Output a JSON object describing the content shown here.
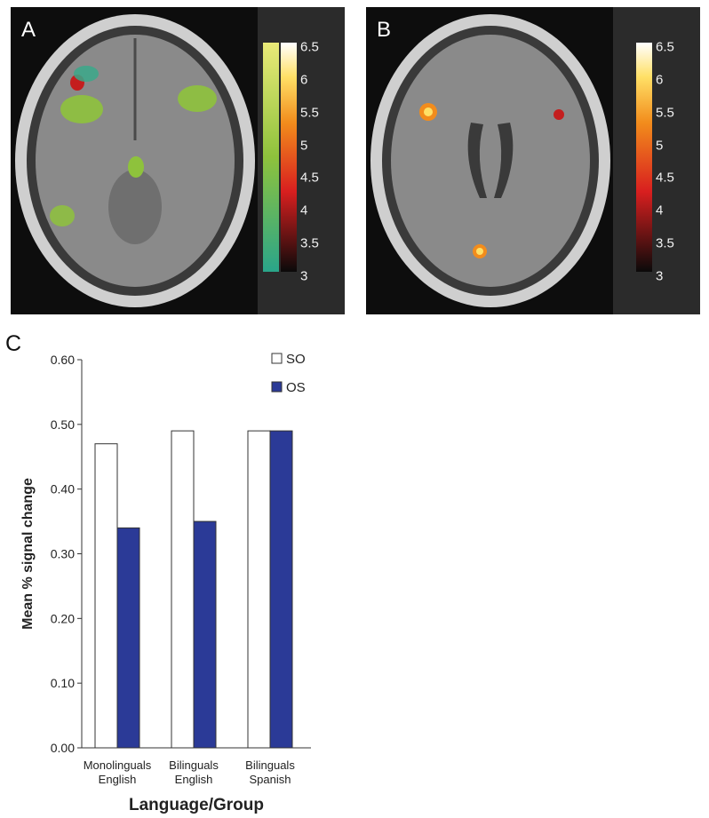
{
  "panels": {
    "a": {
      "letter": "A",
      "colorbar_ticks": [
        "6.5",
        "6",
        "5.5",
        "5",
        "4.5",
        "4",
        "3.5",
        "3"
      ],
      "colorbar_colors": [
        "#3aa88a",
        "#8ec23c",
        "#e2e25a",
        "#0a0a0a",
        "#d81f1f",
        "#f28c1c",
        "#ffe066",
        "#ffffff"
      ]
    },
    "b": {
      "letter": "B",
      "colorbar_ticks": [
        "6.5",
        "6",
        "5.5",
        "5",
        "4.5",
        "4",
        "3.5",
        "3"
      ],
      "colorbar_colors": [
        "#0a0a0a",
        "#d81f1f",
        "#f28c1c",
        "#ffe066",
        "#ffffff"
      ]
    },
    "c": {
      "letter": "C"
    }
  },
  "chart_data": {
    "type": "bar",
    "categories": [
      [
        "Monolinguals",
        "English"
      ],
      [
        "Bilinguals",
        "English"
      ],
      [
        "Bilinguals",
        "Spanish"
      ]
    ],
    "series": [
      {
        "name": "SO",
        "values": [
          0.47,
          0.49,
          0.49
        ],
        "color": "#ffffff"
      },
      {
        "name": "OS",
        "values": [
          0.34,
          0.35,
          0.49
        ],
        "color": "#2b3a97"
      }
    ],
    "xlabel": "Language/Group",
    "ylabel": "Mean % signal change",
    "ylim": [
      0,
      0.6
    ],
    "yticks": [
      "0.00",
      "0.10",
      "0.20",
      "0.30",
      "0.40",
      "0.50",
      "0.60"
    ],
    "grid": false,
    "legend_position": "top-right"
  }
}
